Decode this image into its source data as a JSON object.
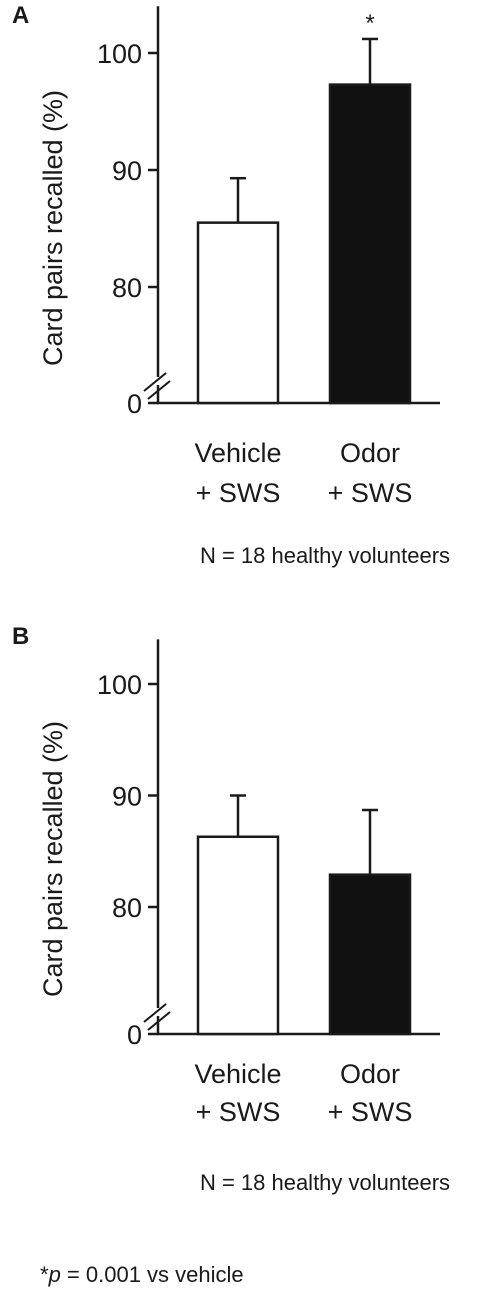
{
  "chart_data": [
    {
      "panel": "A",
      "type": "bar",
      "ylabel": "Card pairs recalled (%)",
      "categories": [
        {
          "line1": "Vehicle",
          "line2": "+ SWS"
        },
        {
          "line1": "Odor",
          "line2": "+ SWS"
        }
      ],
      "values": [
        85.5,
        97.3
      ],
      "errors": [
        3.8,
        3.9
      ],
      "colors": [
        "#ffffff",
        "#111111"
      ],
      "annotations": [
        "",
        "*"
      ],
      "ylim": [
        0,
        104
      ],
      "axis_break": {
        "from": 0,
        "to": 73
      },
      "yticks": [
        0,
        80,
        90,
        100
      ],
      "note": "N = 18 healthy volunteers"
    },
    {
      "panel": "B",
      "type": "bar",
      "ylabel": "Card pairs recalled (%)",
      "categories": [
        {
          "line1": "Vehicle",
          "line2": "+ SWS"
        },
        {
          "line1": "Odor",
          "line2": "+ SWS"
        }
      ],
      "values": [
        86.3,
        82.9
      ],
      "errors": [
        3.7,
        5.8
      ],
      "colors": [
        "#ffffff",
        "#111111"
      ],
      "annotations": [
        "",
        ""
      ],
      "ylim": [
        0,
        104
      ],
      "axis_break": {
        "from": 0,
        "to": 73
      },
      "yticks": [
        0,
        80,
        90,
        100
      ],
      "note": "N = 18 healthy volunteers"
    }
  ],
  "footnote": {
    "star": "*",
    "p": "p",
    "rest": " = 0.001 vs vehicle"
  }
}
